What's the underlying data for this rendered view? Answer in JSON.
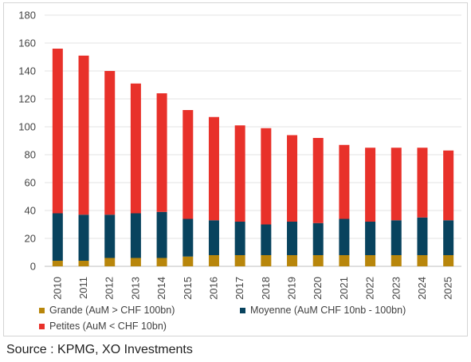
{
  "chart_data": {
    "type": "bar",
    "stacked": true,
    "categories": [
      "2010",
      "2011",
      "2012",
      "2013",
      "2014",
      "2015",
      "2016",
      "2017",
      "2018",
      "2019",
      "2020",
      "2021",
      "2022",
      "2023",
      "2024",
      "2025"
    ],
    "series": [
      {
        "name": "Grande (AuM > CHF  100bn)",
        "color": "#b8860b",
        "values": [
          4,
          4,
          6,
          6,
          6,
          7,
          8,
          8,
          8,
          8,
          8,
          8,
          8,
          8,
          8,
          8
        ]
      },
      {
        "name": "Moyenne (AuM CHF 10nb - 100bn)",
        "color": "#08435e",
        "values": [
          34,
          33,
          31,
          32,
          33,
          27,
          25,
          24,
          22,
          24,
          23,
          26,
          24,
          25,
          27,
          25
        ]
      },
      {
        "name": "Petites (AuM < CHF 10bn)",
        "color": "#e8312a",
        "values": [
          118,
          114,
          103,
          93,
          85,
          78,
          74,
          69,
          69,
          62,
          61,
          53,
          53,
          52,
          50,
          50
        ]
      }
    ],
    "ylim": [
      0,
      180
    ],
    "yticks": [
      "0",
      "20",
      "40",
      "60",
      "80",
      "100",
      "120",
      "140",
      "160",
      "180"
    ],
    "grid": true,
    "legend_position": "bottom"
  },
  "legend": {
    "grande": "Grande (AuM > CHF  100bn)",
    "moyenne": "Moyenne (AuM CHF 10nb - 100bn)",
    "petites": "Petites (AuM < CHF 10bn)"
  },
  "source": "Source : KPMG, XO Investments"
}
